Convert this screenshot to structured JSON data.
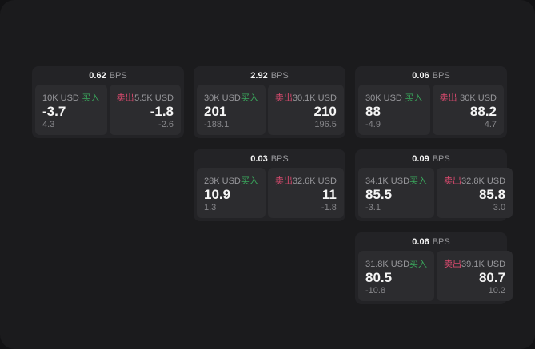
{
  "labels": {
    "bps_suffix": "BPS",
    "buy": "买入",
    "sell": "卖出"
  },
  "colors": {
    "outer_bg": "#121214",
    "window_bg": "#1b1b1d",
    "card_bg": "#232326",
    "cell_bg": "#2c2c2f",
    "text_primary": "#f5f5f5",
    "text_secondary": "#97979b",
    "text_dim": "#86868a",
    "buy_green": "#3aa75c",
    "sell_red": "#d84a6e"
  },
  "cards": [
    {
      "col": 1,
      "row": 1,
      "bps": "0.62",
      "buy": {
        "notional": "10K USD",
        "price": "-3.7",
        "delta": "4.3"
      },
      "sell": {
        "notional": "5.5K USD",
        "price": "-1.8",
        "delta": "-2.6"
      }
    },
    {
      "col": 2,
      "row": 1,
      "bps": "2.92",
      "buy": {
        "notional": "30K USD",
        "price": "201",
        "delta": "-188.1"
      },
      "sell": {
        "notional": "30.1K USD",
        "price": "210",
        "delta": "196.5"
      }
    },
    {
      "col": 3,
      "row": 1,
      "bps": "0.06",
      "buy": {
        "notional": "30K USD",
        "price": "88",
        "delta": "-4.9"
      },
      "sell": {
        "notional": "30K USD",
        "price": "88.2",
        "delta": "4.7"
      }
    },
    {
      "col": 2,
      "row": 2,
      "bps": "0.03",
      "buy": {
        "notional": "28K USD",
        "price": "10.9",
        "delta": "1.3"
      },
      "sell": {
        "notional": "32.6K USD",
        "price": "11",
        "delta": "-1.8"
      }
    },
    {
      "col": 3,
      "row": 2,
      "bps": "0.09",
      "buy": {
        "notional": "34.1K USD",
        "price": "85.5",
        "delta": "-3.1"
      },
      "sell": {
        "notional": "32.8K USD",
        "price": "85.8",
        "delta": "3.0"
      }
    },
    {
      "col": 3,
      "row": 3,
      "bps": "0.06",
      "buy": {
        "notional": "31.8K USD",
        "price": "80.5",
        "delta": "-10.8"
      },
      "sell": {
        "notional": "39.1K USD",
        "price": "80.7",
        "delta": "10.2"
      }
    }
  ]
}
